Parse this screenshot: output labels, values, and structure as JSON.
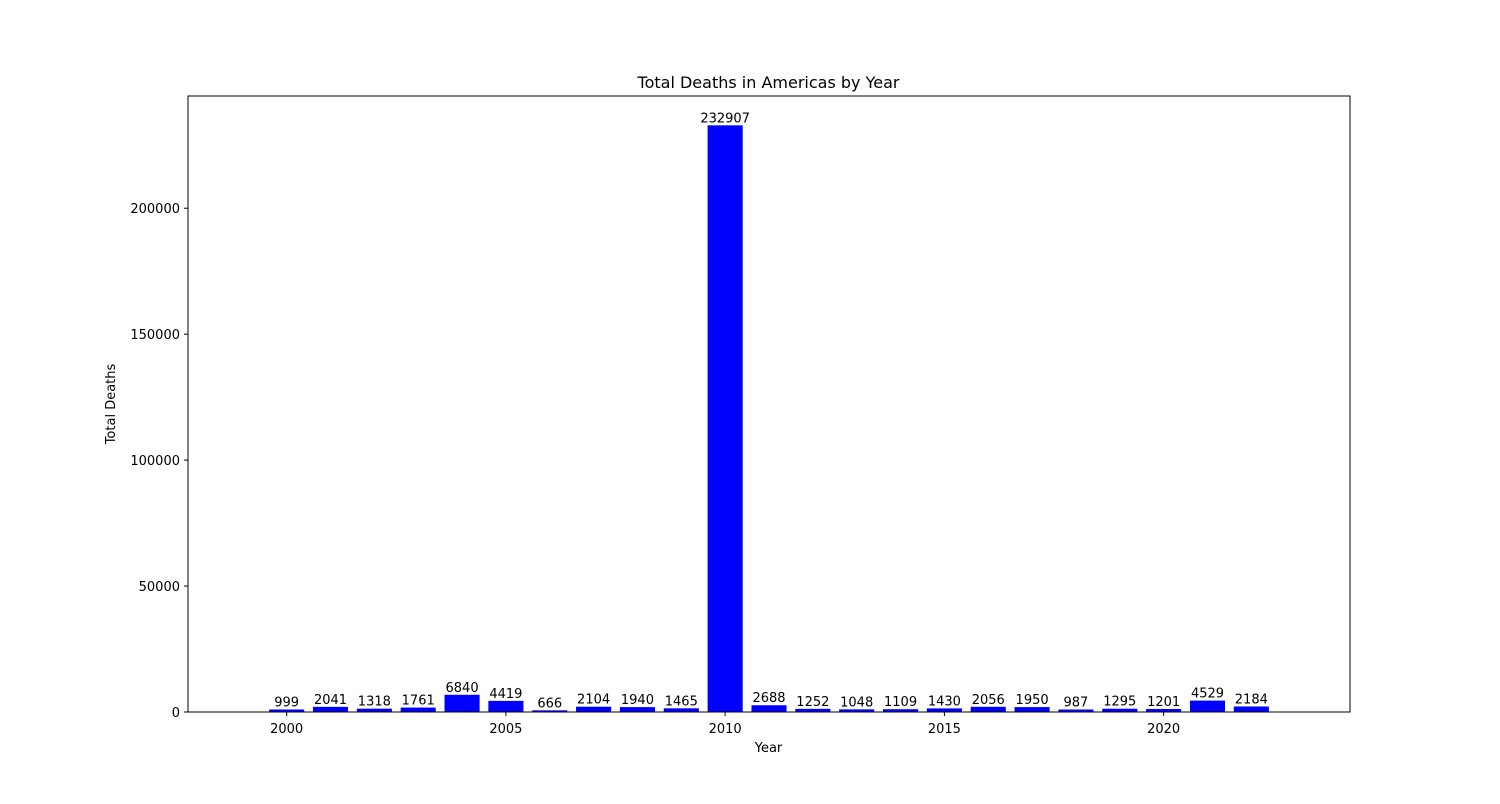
{
  "chart_data": {
    "type": "bar",
    "title": "Total Deaths in Americas by Year",
    "xlabel": "Year",
    "ylabel": "Total Deaths",
    "bar_color": "#0000ff",
    "grid": false,
    "xlim": [
      1997.75,
      2024.25
    ],
    "ylim": [
      0,
      244552
    ],
    "x_ticks": [
      2000,
      2005,
      2010,
      2015,
      2020
    ],
    "y_ticks": [
      0,
      50000,
      100000,
      150000,
      200000
    ],
    "x_tick_labels": [
      "2000",
      "2005",
      "2010",
      "2015",
      "2020"
    ],
    "y_tick_labels": [
      "0",
      "50000",
      "100000",
      "150000",
      "200000"
    ],
    "categories": [
      "2000",
      "2001",
      "2002",
      "2003",
      "2004",
      "2005",
      "2006",
      "2007",
      "2008",
      "2009",
      "2010",
      "2011",
      "2012",
      "2013",
      "2014",
      "2015",
      "2016",
      "2017",
      "2018",
      "2019",
      "2020",
      "2021",
      "2022"
    ],
    "values": [
      999,
      2041,
      1318,
      1761,
      6840,
      4419,
      666,
      2104,
      1940,
      1465,
      232907,
      2688,
      1252,
      1048,
      1109,
      1430,
      2056,
      1950,
      987,
      1295,
      1201,
      4529,
      2184
    ],
    "data_labels": [
      "999",
      "2041",
      "1318",
      "1761",
      "6840",
      "4419",
      "666",
      "2104",
      "1940",
      "1465",
      "232907",
      "2688",
      "1252",
      "1048",
      "1109",
      "1430",
      "2056",
      "1950",
      "987",
      "1295",
      "1201",
      "4529",
      "2184"
    ]
  }
}
